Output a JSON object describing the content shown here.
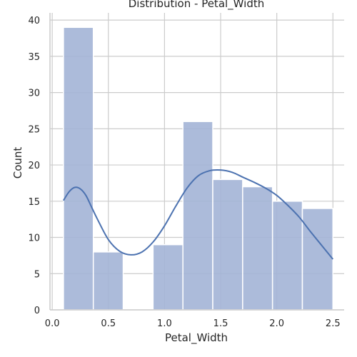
{
  "chart_data": {
    "type": "bar",
    "subtype": "histogram",
    "title": "Distribution - Petal_Width",
    "xlabel": "Petal_Width",
    "ylabel": "Count",
    "xlim": [
      -0.02,
      2.6
    ],
    "ylim": [
      0,
      41
    ],
    "x_ticks": [
      0.0,
      0.5,
      1.0,
      1.5,
      2.0,
      2.5
    ],
    "x_tick_labels": [
      "0.0",
      "0.5",
      "1.0",
      "1.5",
      "2.0",
      "2.5"
    ],
    "y_ticks": [
      0,
      5,
      10,
      15,
      20,
      25,
      30,
      35,
      40
    ],
    "y_tick_labels": [
      "0",
      "5",
      "10",
      "15",
      "20",
      "25",
      "30",
      "35",
      "40"
    ],
    "bins": [
      {
        "x0": 0.1,
        "x1": 0.366,
        "count": 39
      },
      {
        "x0": 0.366,
        "x1": 0.632,
        "count": 8
      },
      {
        "x0": 0.632,
        "x1": 0.898,
        "count": 0
      },
      {
        "x0": 0.898,
        "x1": 1.164,
        "count": 9
      },
      {
        "x0": 1.164,
        "x1": 1.43,
        "count": 26
      },
      {
        "x0": 1.43,
        "x1": 1.696,
        "count": 18
      },
      {
        "x0": 1.696,
        "x1": 1.962,
        "count": 17
      },
      {
        "x0": 1.962,
        "x1": 2.228,
        "count": 15
      },
      {
        "x0": 2.228,
        "x1": 2.5,
        "count": 14
      }
    ],
    "kde": {
      "x": [
        0.1,
        0.15,
        0.2,
        0.25,
        0.3,
        0.35,
        0.4,
        0.5,
        0.6,
        0.7,
        0.8,
        0.9,
        1.0,
        1.1,
        1.2,
        1.3,
        1.4,
        1.5,
        1.6,
        1.7,
        1.8,
        1.9,
        2.0,
        2.1,
        2.2,
        2.3,
        2.4,
        2.5
      ],
      "y": [
        15.1,
        16.3,
        16.9,
        16.7,
        15.8,
        14.2,
        12.6,
        9.7,
        8.1,
        7.6,
        8.0,
        9.4,
        11.6,
        14.3,
        16.8,
        18.5,
        19.2,
        19.3,
        19.0,
        18.3,
        17.6,
        16.8,
        15.8,
        14.4,
        12.8,
        10.8,
        8.9,
        7.0
      ]
    },
    "colors": {
      "bar_fill": "#a3b4d6",
      "bar_edge": "#ffffff",
      "kde_line": "#4c72b0",
      "grid": "#cccccc",
      "axis": "#cccccc"
    },
    "grid": true
  }
}
